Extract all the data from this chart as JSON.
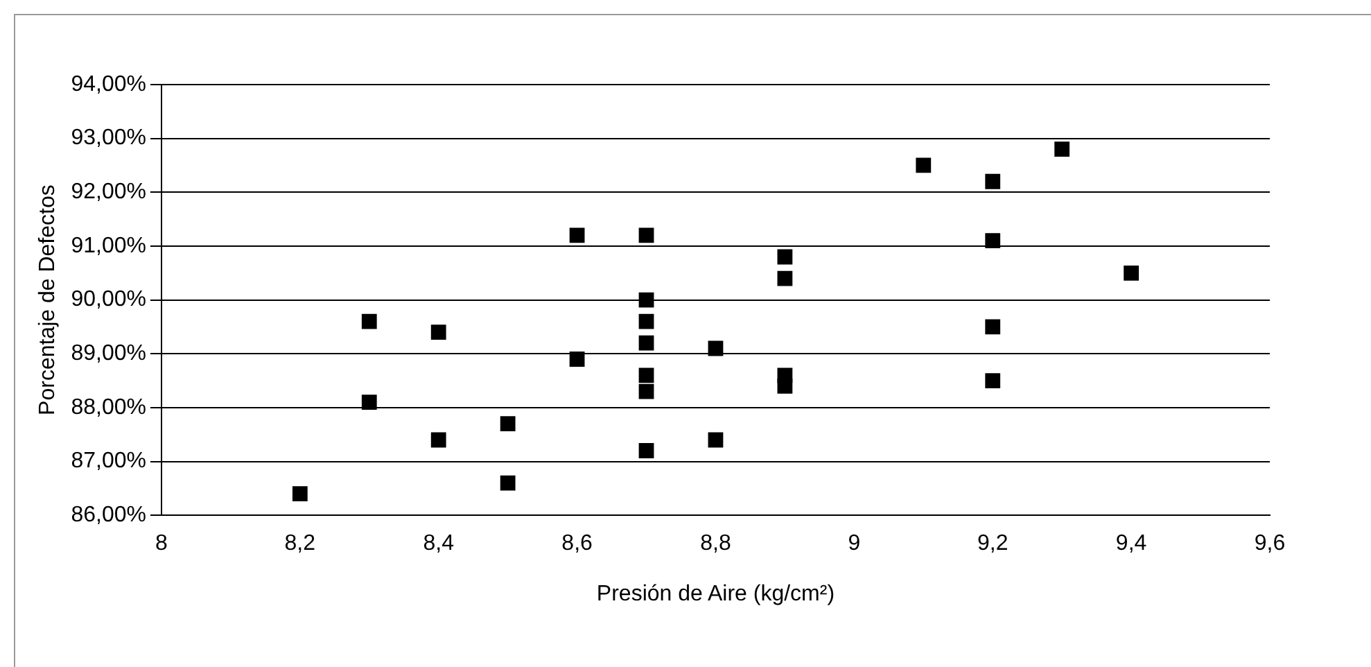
{
  "chart_data": {
    "type": "scatter",
    "xlabel": "Presión de Aire (kg/cm²)",
    "ylabel": "Porcentaje de Defectos",
    "series": [
      {
        "color": "#000000",
        "x": [
          8.2,
          8.3,
          8.3,
          8.4,
          8.4,
          8.5,
          8.5,
          8.6,
          8.6,
          8.7,
          8.7,
          8.7,
          8.7,
          8.7,
          8.7,
          8.7,
          8.8,
          8.8,
          8.9,
          8.9,
          8.9,
          8.9,
          9.1,
          9.2,
          9.2,
          9.2,
          9.2,
          9.3,
          9.4
        ],
        "values": [
          86.4,
          89.6,
          88.1,
          89.4,
          87.4,
          87.7,
          86.6,
          91.2,
          88.9,
          91.2,
          90.0,
          89.6,
          89.2,
          88.6,
          88.3,
          87.2,
          89.1,
          87.4,
          90.8,
          90.4,
          88.6,
          88.4,
          92.5,
          92.2,
          91.1,
          89.5,
          88.5,
          92.8,
          90.5
        ]
      }
    ],
    "xlim": [
      8,
      9.6
    ],
    "xticks": [
      {
        "value": 8,
        "label": "8"
      },
      {
        "value": 8.2,
        "label": "8,2"
      },
      {
        "value": 8.4,
        "label": "8,4"
      },
      {
        "value": 8.6,
        "label": "8,6"
      },
      {
        "value": 8.8,
        "label": "8,8"
      },
      {
        "value": 9,
        "label": "9"
      },
      {
        "value": 9.2,
        "label": "9,2"
      },
      {
        "value": 9.4,
        "label": "9,4"
      },
      {
        "value": 9.6,
        "label": "9,6"
      }
    ],
    "ylim": [
      86,
      94
    ],
    "yticks": [
      {
        "value": 86,
        "label": "86,00%"
      },
      {
        "value": 87,
        "label": "87,00%"
      },
      {
        "value": 88,
        "label": "88,00%"
      },
      {
        "value": 89,
        "label": "89,00%"
      },
      {
        "value": 90,
        "label": "90,00%"
      },
      {
        "value": 91,
        "label": "91,00%"
      },
      {
        "value": 92,
        "label": "92,00%"
      },
      {
        "value": 93,
        "label": "93,00%"
      },
      {
        "value": 94,
        "label": "94,00%"
      }
    ],
    "grid": "y",
    "marker": "square",
    "legend": false
  }
}
